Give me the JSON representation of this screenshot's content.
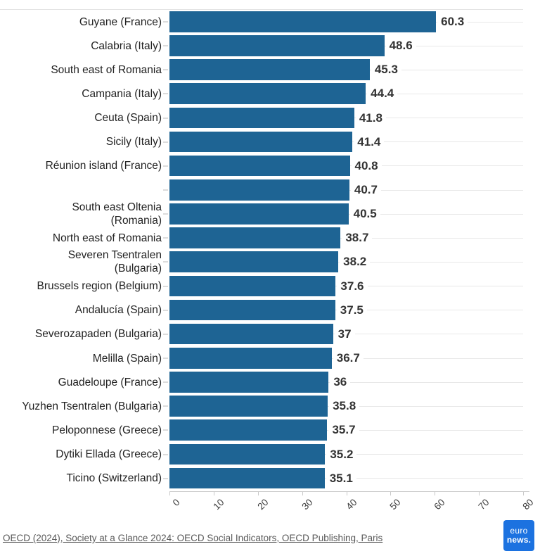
{
  "chart_data": {
    "type": "bar",
    "orientation": "horizontal",
    "title": "",
    "xlabel": "",
    "ylabel": "",
    "xlim": [
      0,
      80
    ],
    "x_ticks": [
      0,
      10,
      20,
      30,
      40,
      50,
      60,
      70,
      80
    ],
    "grid": "horizontal row lines, light gray",
    "legend": "none",
    "bar_color": "#1e6494",
    "categories": [
      "Guyane (France)",
      "Calabria (Italy)",
      "South east of Romania",
      "Campania (Italy)",
      "Ceuta (Spain)",
      "Sicily (Italy)",
      "Réunion island (France)",
      "",
      "South east Oltenia\n(Romania)",
      "North east of Romania",
      "Severen Tsentralen\n(Bulgaria)",
      "Brussels region (Belgium)",
      "Andalucía (Spain)",
      "Severozapaden (Bulgaria)",
      "Melilla (Spain)",
      "Guadeloupe (France)",
      "Yuzhen Tsentralen (Bulgaria)",
      "Peloponnese (Greece)",
      "Dytiki Ellada (Greece)",
      "Ticino (Switzerland)"
    ],
    "values": [
      60.3,
      48.6,
      45.3,
      44.4,
      41.8,
      41.4,
      40.8,
      40.7,
      40.5,
      38.7,
      38.2,
      37.6,
      37.5,
      37,
      36.7,
      36,
      35.8,
      35.7,
      35.2,
      35.1
    ],
    "value_labels": [
      "60.3",
      "48.6",
      "45.3",
      "44.4",
      "41.8",
      "41.4",
      "40.8",
      "40.7",
      "40.5",
      "38.7",
      "38.2",
      "37.6",
      "37.5",
      "37",
      "36.7",
      "36",
      "35.8",
      "35.7",
      "35.2",
      "35.1"
    ]
  },
  "footer": {
    "source_text": "OECD (2024), Society at a Glance 2024: OECD Social Indicators, OECD Publishing, Paris",
    "logo": {
      "line1": "euro",
      "line2": "news.",
      "background": "#1c72e0"
    }
  }
}
